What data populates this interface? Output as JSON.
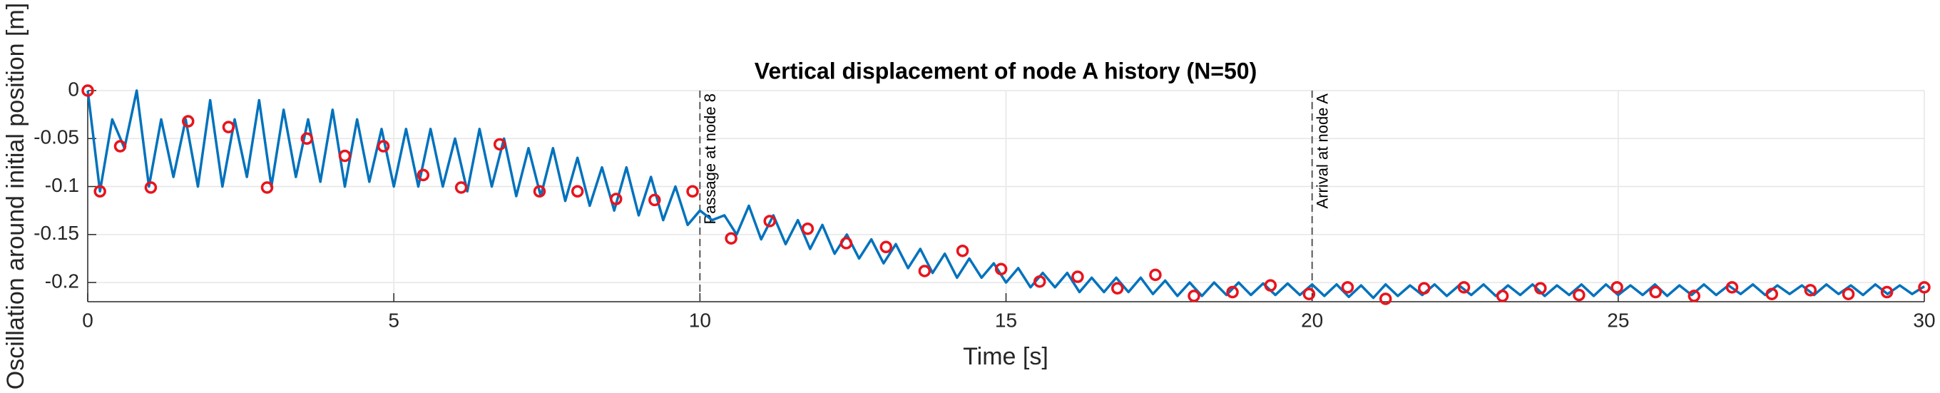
{
  "chart_data": {
    "type": "line",
    "title": "Vertical displacement of node A history (N=50)",
    "xlabel": "Time [s]",
    "ylabel": "Oscillation around initial position [m]",
    "xlim": [
      0,
      30
    ],
    "ylim": [
      -0.22,
      0
    ],
    "xticks": [
      0,
      5,
      10,
      15,
      20,
      25,
      30
    ],
    "yticks": [
      0,
      -0.05,
      -0.1,
      -0.15,
      -0.2
    ],
    "grid": true,
    "series": [
      {
        "color": "#0072bd",
        "style": "line",
        "x": [
          0,
          0.2,
          0.4,
          0.6,
          0.8,
          1,
          1.2,
          1.4,
          1.6,
          1.8,
          2,
          2.2,
          2.4,
          2.6,
          2.8,
          3,
          3.2,
          3.4,
          3.6,
          3.8,
          4,
          4.2,
          4.4,
          4.6,
          4.8,
          5,
          5.2,
          5.4,
          5.6,
          5.8,
          6,
          6.2,
          6.4,
          6.6,
          6.8,
          7,
          7.2,
          7.4,
          7.6,
          7.8,
          8,
          8.2,
          8.4,
          8.6,
          8.8,
          9,
          9.2,
          9.4,
          9.6,
          9.8,
          10,
          10.2,
          10.4,
          10.6,
          10.8,
          11,
          11.2,
          11.4,
          11.6,
          11.8,
          12,
          12.2,
          12.4,
          12.6,
          12.8,
          13,
          13.2,
          13.4,
          13.6,
          13.8,
          14,
          14.2,
          14.4,
          14.6,
          14.8,
          15,
          15.2,
          15.4,
          15.6,
          15.8,
          16,
          16.2,
          16.4,
          16.6,
          16.8,
          17,
          17.2,
          17.4,
          17.6,
          17.8,
          18,
          18.2,
          18.4,
          18.6,
          18.8,
          19,
          19.2,
          19.4,
          19.6,
          19.8,
          20,
          20.2,
          20.4,
          20.6,
          20.8,
          21,
          21.2,
          21.4,
          21.6,
          21.8,
          22,
          22.2,
          22.4,
          22.6,
          22.8,
          23,
          23.2,
          23.4,
          23.6,
          23.8,
          24,
          24.2,
          24.4,
          24.6,
          24.8,
          25,
          25.2,
          25.4,
          25.6,
          25.8,
          26,
          26.2,
          26.4,
          26.6,
          26.8,
          27,
          27.2,
          27.4,
          27.6,
          27.8,
          28,
          28.2,
          28.4,
          28.6,
          28.8,
          29,
          29.2,
          29.4,
          29.6,
          29.8,
          30
        ],
        "values": [
          0,
          -0.105,
          -0.03,
          -0.06,
          0,
          -0.1,
          -0.03,
          -0.09,
          -0.03,
          -0.1,
          -0.01,
          -0.1,
          -0.03,
          -0.09,
          -0.01,
          -0.1,
          -0.02,
          -0.09,
          -0.03,
          -0.095,
          -0.02,
          -0.1,
          -0.03,
          -0.095,
          -0.04,
          -0.1,
          -0.04,
          -0.1,
          -0.04,
          -0.1,
          -0.05,
          -0.105,
          -0.04,
          -0.1,
          -0.05,
          -0.11,
          -0.06,
          -0.11,
          -0.06,
          -0.115,
          -0.07,
          -0.12,
          -0.08,
          -0.125,
          -0.08,
          -0.13,
          -0.09,
          -0.135,
          -0.1,
          -0.14,
          -0.125,
          -0.135,
          -0.13,
          -0.15,
          -0.12,
          -0.155,
          -0.13,
          -0.16,
          -0.135,
          -0.165,
          -0.14,
          -0.17,
          -0.15,
          -0.175,
          -0.155,
          -0.18,
          -0.16,
          -0.185,
          -0.165,
          -0.19,
          -0.17,
          -0.195,
          -0.175,
          -0.195,
          -0.18,
          -0.2,
          -0.185,
          -0.205,
          -0.19,
          -0.205,
          -0.19,
          -0.21,
          -0.195,
          -0.21,
          -0.195,
          -0.21,
          -0.195,
          -0.212,
          -0.198,
          -0.214,
          -0.2,
          -0.214,
          -0.2,
          -0.213,
          -0.2,
          -0.213,
          -0.201,
          -0.213,
          -0.201,
          -0.213,
          -0.202,
          -0.214,
          -0.202,
          -0.215,
          -0.203,
          -0.216,
          -0.202,
          -0.214,
          -0.203,
          -0.213,
          -0.202,
          -0.214,
          -0.203,
          -0.213,
          -0.202,
          -0.214,
          -0.203,
          -0.213,
          -0.202,
          -0.214,
          -0.203,
          -0.213,
          -0.202,
          -0.214,
          -0.202,
          -0.213,
          -0.203,
          -0.213,
          -0.202,
          -0.214,
          -0.203,
          -0.213,
          -0.202,
          -0.213,
          -0.203,
          -0.212,
          -0.202,
          -0.213,
          -0.203,
          -0.212,
          -0.203,
          -0.213,
          -0.202,
          -0.212,
          -0.203,
          -0.213,
          -0.202,
          -0.212,
          -0.203,
          -0.212,
          -0.204
        ]
      },
      {
        "color": "#e8141d",
        "style": "marker",
        "x": [
          0,
          0.2,
          0.53,
          1.03,
          1.64,
          2.3,
          2.93,
          3.58,
          4.2,
          4.83,
          5.48,
          6.1,
          6.73,
          7.38,
          8,
          8.63,
          9.26,
          9.88,
          10.51,
          11.14,
          11.76,
          12.39,
          13.04,
          13.67,
          14.29,
          14.92,
          15.55,
          16.17,
          16.82,
          17.44,
          18.07,
          18.7,
          19.32,
          19.95,
          20.58,
          21.2,
          21.83,
          22.48,
          23.11,
          23.73,
          24.36,
          24.98,
          25.61,
          26.24,
          26.86,
          27.51,
          28.14,
          28.76,
          29.39,
          30
        ],
        "values": [
          0,
          -0.105,
          -0.058,
          -0.101,
          -0.032,
          -0.038,
          -0.101,
          -0.05,
          -0.068,
          -0.058,
          -0.088,
          -0.101,
          -0.056,
          -0.105,
          -0.105,
          -0.113,
          -0.114,
          -0.105,
          -0.154,
          -0.136,
          -0.144,
          -0.159,
          -0.163,
          -0.188,
          -0.167,
          -0.186,
          -0.199,
          -0.194,
          -0.206,
          -0.192,
          -0.214,
          -0.21,
          -0.203,
          -0.212,
          -0.205,
          -0.217,
          -0.206,
          -0.205,
          -0.214,
          -0.206,
          -0.213,
          -0.205,
          -0.21,
          -0.214,
          -0.205,
          -0.212,
          -0.208,
          -0.212,
          -0.21,
          -0.205
        ]
      }
    ],
    "annotations": [
      {
        "x": 10,
        "text": "Passage at node 8"
      },
      {
        "x": 20,
        "text": "Arrival at node A"
      }
    ]
  }
}
